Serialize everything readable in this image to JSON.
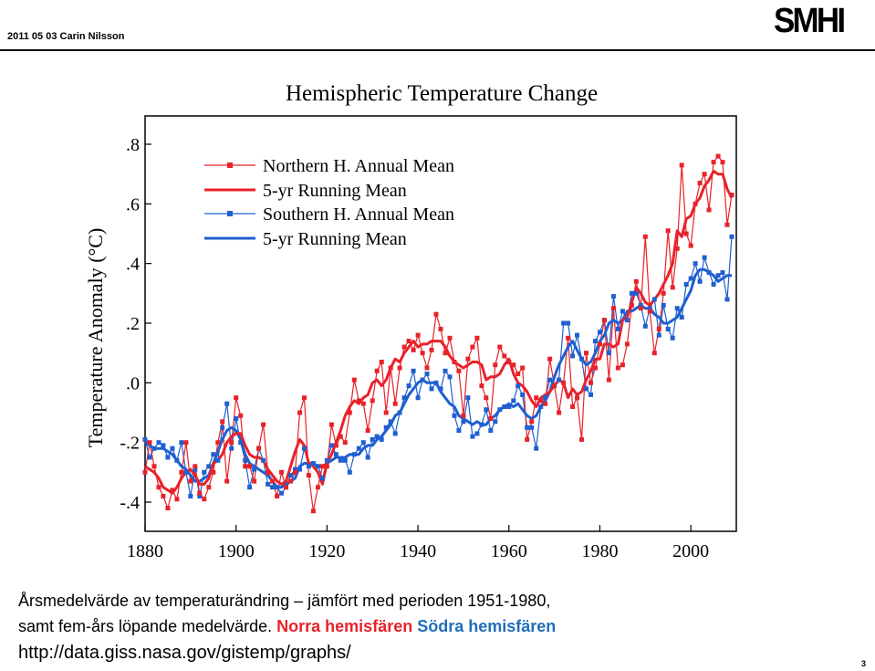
{
  "header": {
    "date_author": "2011 05 03 Carin Nilsson",
    "logo": "SMHI"
  },
  "chart_data": {
    "type": "line",
    "title": "Hemispheric Temperature Change",
    "ylabel": "Temperature Anomaly (°C)",
    "xlabel": "",
    "xlim": [
      1880,
      2010
    ],
    "ylim": [
      -0.45,
      0.85
    ],
    "x_ticks": [
      1880,
      1900,
      1920,
      1940,
      1960,
      1980,
      2000
    ],
    "y_ticks": [
      {
        "value": 0.8,
        "label": ".8"
      },
      {
        "value": 0.6,
        "label": ".6"
      },
      {
        "value": 0.4,
        "label": ".4"
      },
      {
        "value": 0.2,
        "label": ".2"
      },
      {
        "value": 0.0,
        "label": ".0"
      },
      {
        "value": -0.2,
        "label": "-.2"
      },
      {
        "value": -0.4,
        "label": "-.4"
      }
    ],
    "legend_position": "top-left",
    "colors": {
      "north": "#e8222a",
      "south": "#1f5fd0"
    },
    "x": [
      1880,
      1881,
      1882,
      1883,
      1884,
      1885,
      1886,
      1887,
      1888,
      1889,
      1890,
      1891,
      1892,
      1893,
      1894,
      1895,
      1896,
      1897,
      1898,
      1899,
      1900,
      1901,
      1902,
      1903,
      1904,
      1905,
      1906,
      1907,
      1908,
      1909,
      1910,
      1911,
      1912,
      1913,
      1914,
      1915,
      1916,
      1917,
      1918,
      1919,
      1920,
      1921,
      1922,
      1923,
      1924,
      1925,
      1926,
      1927,
      1928,
      1929,
      1930,
      1931,
      1932,
      1933,
      1934,
      1935,
      1936,
      1937,
      1938,
      1939,
      1940,
      1941,
      1942,
      1943,
      1944,
      1945,
      1946,
      1947,
      1948,
      1949,
      1950,
      1951,
      1952,
      1953,
      1954,
      1955,
      1956,
      1957,
      1958,
      1959,
      1960,
      1961,
      1962,
      1963,
      1964,
      1965,
      1966,
      1967,
      1968,
      1969,
      1970,
      1971,
      1972,
      1973,
      1974,
      1975,
      1976,
      1977,
      1978,
      1979,
      1980,
      1981,
      1982,
      1983,
      1984,
      1985,
      1986,
      1987,
      1988,
      1989,
      1990,
      1991,
      1992,
      1993,
      1994,
      1995,
      1996,
      1997,
      1998,
      1999,
      2000,
      2001,
      2002,
      2003,
      2004,
      2005,
      2006,
      2007,
      2008,
      2009
    ],
    "series": [
      {
        "name": "Northern H. Annual Mean",
        "style": "line-with-markers",
        "values": [
          -0.3,
          -0.2,
          -0.28,
          -0.35,
          -0.38,
          -0.42,
          -0.36,
          -0.39,
          -0.3,
          -0.2,
          -0.33,
          -0.28,
          -0.37,
          -0.39,
          -0.35,
          -0.3,
          -0.2,
          -0.13,
          -0.33,
          -0.2,
          -0.05,
          -0.11,
          -0.28,
          -0.28,
          -0.33,
          -0.22,
          -0.14,
          -0.3,
          -0.33,
          -0.38,
          -0.3,
          -0.35,
          -0.33,
          -0.3,
          -0.1,
          -0.05,
          -0.31,
          -0.43,
          -0.35,
          -0.28,
          -0.28,
          -0.14,
          -0.21,
          -0.18,
          -0.2,
          -0.1,
          0.01,
          -0.06,
          -0.07,
          -0.16,
          -0.06,
          0.04,
          0.07,
          -0.1,
          0.05,
          -0.07,
          0.05,
          0.12,
          0.14,
          0.11,
          0.16,
          0.1,
          0.05,
          0.11,
          0.23,
          0.18,
          0.1,
          0.15,
          0.07,
          0.04,
          -0.11,
          0.08,
          0.12,
          0.15,
          -0.01,
          -0.05,
          -0.12,
          0.06,
          0.12,
          0.09,
          0.07,
          0.06,
          0.03,
          0.05,
          -0.19,
          -0.13,
          -0.05,
          -0.06,
          -0.07,
          0.08,
          -0.01,
          -0.1,
          0.0,
          0.15,
          -0.08,
          -0.05,
          -0.19,
          0.1,
          0.0,
          0.05,
          0.13,
          0.21,
          0.01,
          0.25,
          0.05,
          0.06,
          0.13,
          0.26,
          0.34,
          0.25,
          0.49,
          0.24,
          0.1,
          0.18,
          0.3,
          0.51,
          0.32,
          0.45,
          0.73,
          0.5,
          0.46,
          0.6,
          0.67,
          0.7,
          0.58,
          0.74,
          0.76,
          0.74,
          0.53,
          0.63
        ]
      },
      {
        "name": "5-yr Running Mean",
        "hemisphere": "north",
        "style": "line",
        "values": [
          -0.28,
          -0.29,
          -0.3,
          -0.32,
          -0.35,
          -0.36,
          -0.37,
          -0.35,
          -0.32,
          -0.3,
          -0.29,
          -0.31,
          -0.34,
          -0.34,
          -0.32,
          -0.27,
          -0.26,
          -0.24,
          -0.2,
          -0.18,
          -0.17,
          -0.17,
          -0.21,
          -0.24,
          -0.25,
          -0.25,
          -0.26,
          -0.29,
          -0.31,
          -0.33,
          -0.34,
          -0.33,
          -0.28,
          -0.23,
          -0.19,
          -0.21,
          -0.27,
          -0.28,
          -0.3,
          -0.34,
          -0.27,
          -0.24,
          -0.2,
          -0.16,
          -0.11,
          -0.08,
          -0.06,
          -0.07,
          -0.05,
          -0.04,
          0.0,
          0.01,
          -0.01,
          0.01,
          0.05,
          0.08,
          0.07,
          0.1,
          0.12,
          0.14,
          0.12,
          0.13,
          0.13,
          0.14,
          0.14,
          0.14,
          0.12,
          0.09,
          0.07,
          0.06,
          0.05,
          0.06,
          0.07,
          0.07,
          0.06,
          0.01,
          0.02,
          0.02,
          0.03,
          0.06,
          0.08,
          0.03,
          0.0,
          -0.01,
          -0.03,
          -0.06,
          -0.08,
          -0.05,
          -0.04,
          -0.03,
          -0.01,
          0.01,
          0.0,
          -0.05,
          -0.02,
          -0.04,
          -0.03,
          0.01,
          0.04,
          0.08,
          0.08,
          0.13,
          0.13,
          0.12,
          0.13,
          0.21,
          0.22,
          0.27,
          0.32,
          0.3,
          0.27,
          0.26,
          0.28,
          0.3,
          0.33,
          0.36,
          0.4,
          0.51,
          0.49,
          0.55,
          0.56,
          0.6,
          0.62,
          0.66,
          0.68,
          0.71,
          0.7,
          0.7,
          0.65,
          0.62
        ]
      },
      {
        "name": "Southern H. Annual Mean",
        "style": "line-with-markers",
        "values": [
          -0.19,
          -0.25,
          -0.22,
          -0.2,
          -0.21,
          -0.25,
          -0.22,
          -0.26,
          -0.2,
          -0.3,
          -0.38,
          -0.29,
          -0.38,
          -0.3,
          -0.28,
          -0.24,
          -0.26,
          -0.15,
          -0.07,
          -0.22,
          -0.12,
          -0.2,
          -0.26,
          -0.35,
          -0.29,
          -0.22,
          -0.26,
          -0.34,
          -0.35,
          -0.35,
          -0.37,
          -0.35,
          -0.31,
          -0.29,
          -0.29,
          -0.22,
          -0.28,
          -0.27,
          -0.28,
          -0.32,
          -0.26,
          -0.21,
          -0.24,
          -0.26,
          -0.26,
          -0.3,
          -0.24,
          -0.22,
          -0.2,
          -0.25,
          -0.19,
          -0.18,
          -0.19,
          -0.15,
          -0.13,
          -0.17,
          -0.1,
          -0.05,
          -0.01,
          0.04,
          -0.05,
          0.01,
          0.03,
          -0.02,
          0.0,
          -0.02,
          0.04,
          0.02,
          -0.11,
          -0.16,
          -0.13,
          -0.05,
          -0.18,
          -0.17,
          -0.14,
          -0.09,
          -0.16,
          -0.13,
          -0.09,
          -0.08,
          -0.08,
          -0.06,
          -0.01,
          -0.04,
          -0.15,
          -0.15,
          -0.22,
          -0.08,
          -0.05,
          0.01,
          -0.01,
          0.01,
          0.2,
          0.2,
          0.09,
          0.16,
          0.08,
          -0.02,
          -0.04,
          0.14,
          0.17,
          0.21,
          0.1,
          0.29,
          0.18,
          0.24,
          0.21,
          0.3,
          0.3,
          0.26,
          0.19,
          0.25,
          0.28,
          0.16,
          0.26,
          0.18,
          0.15,
          0.25,
          0.22,
          0.33,
          0.35,
          0.4,
          0.34,
          0.42,
          0.37,
          0.33,
          0.36,
          0.37,
          0.28,
          0.49
        ]
      },
      {
        "name": "5-yr Running Mean",
        "hemisphere": "south",
        "style": "line",
        "values": [
          -0.2,
          -0.21,
          -0.22,
          -0.22,
          -0.22,
          -0.23,
          -0.24,
          -0.26,
          -0.28,
          -0.29,
          -0.31,
          -0.33,
          -0.33,
          -0.32,
          -0.31,
          -0.27,
          -0.23,
          -0.19,
          -0.16,
          -0.15,
          -0.16,
          -0.19,
          -0.24,
          -0.27,
          -0.28,
          -0.29,
          -0.3,
          -0.31,
          -0.33,
          -0.35,
          -0.35,
          -0.34,
          -0.33,
          -0.32,
          -0.28,
          -0.27,
          -0.27,
          -0.27,
          -0.28,
          -0.28,
          -0.27,
          -0.26,
          -0.25,
          -0.25,
          -0.25,
          -0.24,
          -0.24,
          -0.24,
          -0.22,
          -0.21,
          -0.21,
          -0.19,
          -0.18,
          -0.16,
          -0.14,
          -0.11,
          -0.1,
          -0.07,
          -0.04,
          -0.02,
          0.0,
          0.01,
          0.0,
          0.0,
          0.0,
          -0.03,
          -0.05,
          -0.07,
          -0.08,
          -0.11,
          -0.12,
          -0.13,
          -0.14,
          -0.13,
          -0.14,
          -0.14,
          -0.12,
          -0.11,
          -0.09,
          -0.08,
          -0.07,
          -0.08,
          -0.07,
          -0.09,
          -0.11,
          -0.12,
          -0.11,
          -0.08,
          -0.06,
          -0.03,
          0.02,
          0.06,
          0.09,
          0.12,
          0.14,
          0.11,
          0.08,
          0.06,
          0.07,
          0.1,
          0.14,
          0.16,
          0.2,
          0.21,
          0.2,
          0.21,
          0.24,
          0.24,
          0.25,
          0.26,
          0.25,
          0.25,
          0.23,
          0.22,
          0.2,
          0.2,
          0.21,
          0.22,
          0.25,
          0.28,
          0.31,
          0.36,
          0.38,
          0.38,
          0.37,
          0.36,
          0.34,
          0.35,
          0.36,
          0.36
        ]
      }
    ]
  },
  "caption": {
    "line1": "Årsmedelvärde  av temperaturändring  – jämfört med perioden 1951-1980,",
    "line2_prefix": "samt fem-års löpande medelvärde.",
    "north_label": "Norra hemisfären",
    "south_label": "Södra hemisfären",
    "url": "http://data.giss.nasa.gov/gistemp/graphs/"
  },
  "page_number": "3"
}
